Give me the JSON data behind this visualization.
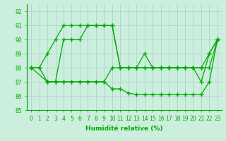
{
  "line1_x": [
    0,
    1,
    2,
    3,
    4,
    5,
    6,
    7,
    8,
    9,
    10,
    11,
    12,
    13,
    14,
    15,
    16,
    17,
    18,
    19,
    20,
    21,
    22,
    23
  ],
  "line1_y": [
    88,
    88,
    89,
    90,
    91,
    91,
    91,
    91,
    91,
    91,
    91,
    88,
    88,
    88,
    89,
    88,
    88,
    88,
    88,
    88,
    88,
    87,
    89,
    90
  ],
  "line2_x": [
    0,
    1,
    2,
    3,
    4,
    5,
    6,
    7,
    8,
    9,
    10,
    11,
    12,
    13,
    14,
    15,
    16,
    17,
    18,
    19,
    20,
    21,
    22,
    23
  ],
  "line2_y": [
    88,
    88,
    87,
    87,
    90,
    90,
    90,
    91,
    91,
    91,
    91,
    88,
    88,
    88,
    88,
    88,
    88,
    88,
    88,
    88,
    88,
    88,
    89,
    90
  ],
  "line3_x": [
    0,
    2,
    3,
    4,
    5,
    6,
    7,
    8,
    9,
    10,
    11,
    12,
    13,
    14,
    15,
    16,
    17,
    18,
    19,
    20,
    21,
    22,
    23
  ],
  "line3_y": [
    88,
    87,
    87,
    87,
    87,
    87,
    87,
    87,
    87,
    88,
    88,
    88,
    88,
    88,
    88,
    88,
    88,
    88,
    88,
    88,
    88,
    88,
    90
  ],
  "line4_x": [
    2,
    3,
    4,
    5,
    6,
    7,
    8,
    9,
    10,
    11,
    12,
    13,
    14,
    15,
    16,
    17,
    18,
    19,
    20,
    21,
    22,
    23
  ],
  "line4_y": [
    87,
    87,
    87,
    87,
    87,
    87,
    87,
    87,
    86.5,
    86.5,
    86.2,
    86.1,
    86.1,
    86.1,
    86.1,
    86.1,
    86.1,
    86.1,
    86.1,
    86.1,
    87,
    90
  ],
  "xlabel": "Humidité relative (%)",
  "ylim": [
    85,
    92.5
  ],
  "xlim": [
    -0.5,
    23.5
  ],
  "yticks": [
    85,
    86,
    87,
    88,
    89,
    90,
    91,
    92
  ],
  "xticks": [
    0,
    1,
    2,
    3,
    4,
    5,
    6,
    7,
    8,
    9,
    10,
    11,
    12,
    13,
    14,
    15,
    16,
    17,
    18,
    19,
    20,
    21,
    22,
    23
  ],
  "bg_color": "#cceedd",
  "grid_color": "#aacccc",
  "line_color": "#00aa00",
  "text_color": "#00aa00",
  "axis_color": "#009900"
}
